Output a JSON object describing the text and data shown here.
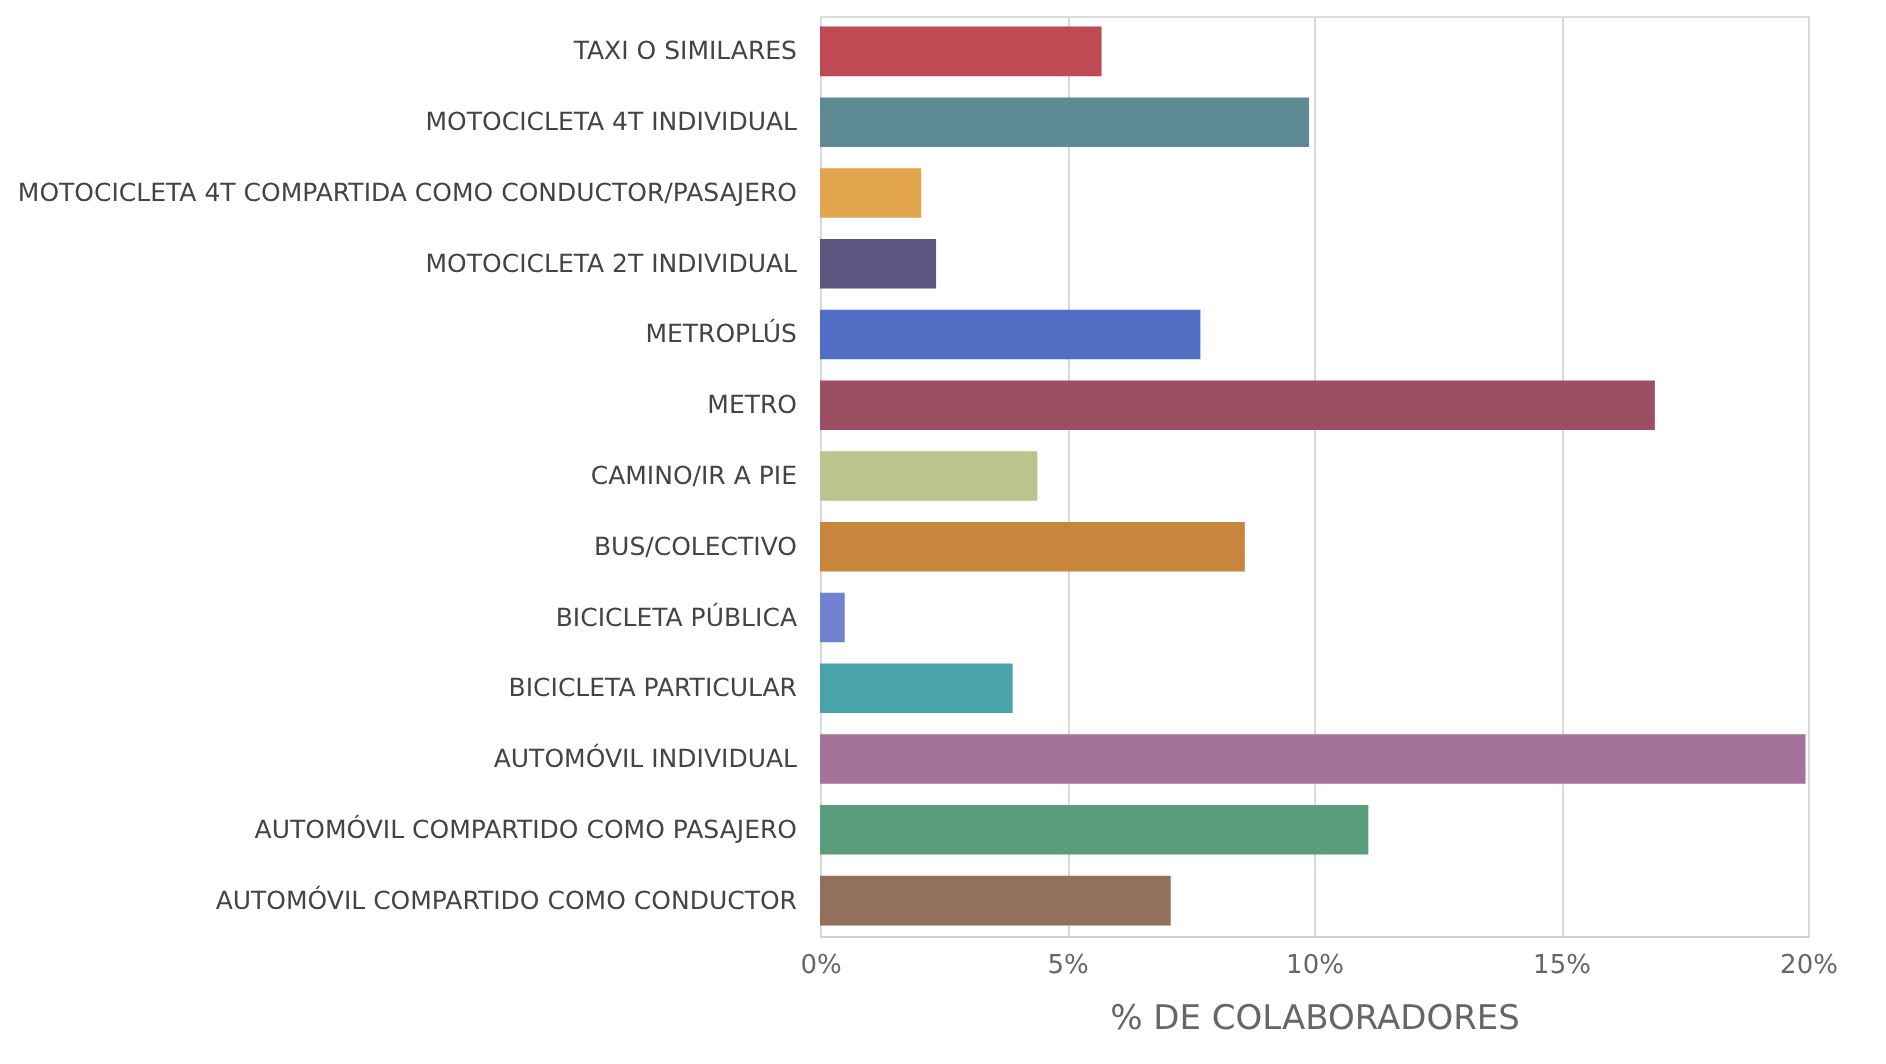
{
  "chart_data": {
    "type": "bar",
    "orientation": "horizontal",
    "xlabel": "% DE COLABORADORES",
    "categories": [
      "TAXI O SIMILARES",
      "MOTOCICLETA 4T INDIVIDUAL",
      "MOTOCICLETA 4T COMPARTIDA COMO CONDUCTOR/PASAJERO",
      "MOTOCICLETA 2T INDIVIDUAL",
      "METROPLÚS",
      "METRO",
      "CAMINO/IR A PIE",
      "BUS/COLECTIVO",
      "BICICLETA PÚBLICA",
      "BICICLETA PARTICULAR",
      "AUTOMÓVIL INDIVIDUAL",
      "AUTOMÓVIL COMPARTIDO COMO PASAJERO",
      "AUTOMÓVIL COMPARTIDO COMO CONDUCTOR"
    ],
    "values": [
      5.7,
      9.9,
      2.05,
      2.35,
      7.7,
      16.9,
      4.4,
      8.6,
      0.5,
      3.9,
      19.95,
      11.1,
      7.1
    ],
    "colors": [
      "#bf4a54",
      "#5e8b93",
      "#e3a64f",
      "#5c5580",
      "#506fc4",
      "#9c4f63",
      "#bbc48c",
      "#c8853e",
      "#7081d0",
      "#4aa3ab",
      "#a57399",
      "#5a9d7c",
      "#93705c"
    ],
    "xlim": [
      0,
      20
    ],
    "xticks": [
      {
        "value": 0,
        "label": "0%"
      },
      {
        "value": 5,
        "label": "5%"
      },
      {
        "value": 10,
        "label": "10%"
      },
      {
        "value": 15,
        "label": "15%"
      },
      {
        "value": 20,
        "label": "20%"
      }
    ],
    "grid": "x"
  }
}
